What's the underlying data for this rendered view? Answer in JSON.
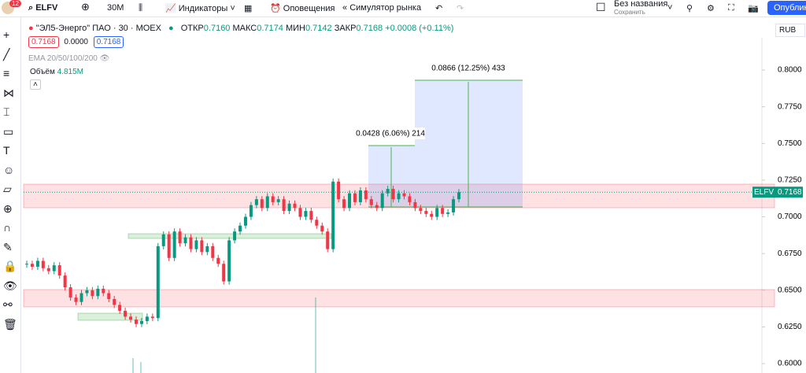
{
  "toolbar": {
    "badge": "12",
    "symbol": "ELFV",
    "interval": "30M",
    "indicators": "Индикаторы",
    "alerts": "Оповещения",
    "replay": "Симулятор рынка",
    "layout_name": "Без названия",
    "layout_status": "Сохранить",
    "publish": "Опубликовать"
  },
  "legend": {
    "title": "\"ЭЛ5-Энерго\" ПАО · 30 · MOEX",
    "open_label": "ОТКР",
    "open": "0.7160",
    "high_label": "МАКС",
    "high": "0.7174",
    "low_label": "МИН",
    "low": "0.7142",
    "close_label": "ЗАКР",
    "close": "0.7168",
    "change": "+0.0008 (+0.11%)",
    "bid": "0.7168",
    "spread": "0.0000",
    "ask": "0.7168",
    "ema": "EMA 20/50/100/200",
    "volume_label": "Объём",
    "volume": "4.815M"
  },
  "currency": "RUB",
  "price_label": {
    "symbol": "ELFV",
    "value": "0.7168"
  },
  "measures": [
    "0.0428 (6.06%) 214",
    "0.0866 (12.25%) 433"
  ],
  "chart_data": {
    "type": "candlestick",
    "candles": [
      0.668,
      0.666,
      0.67,
      0.665,
      0.663,
      0.667,
      0.66,
      0.652,
      0.645,
      0.642,
      0.648,
      0.65,
      0.646,
      0.651,
      0.648,
      0.644,
      0.64,
      0.636,
      0.632,
      0.63,
      0.627,
      0.629,
      0.632,
      0.631,
      0.68,
      0.688,
      0.672,
      0.69,
      0.682,
      0.686,
      0.678,
      0.684,
      0.676,
      0.68,
      0.672,
      0.668,
      0.656,
      0.684,
      0.69,
      0.694,
      0.7,
      0.708,
      0.712,
      0.706,
      0.714,
      0.71,
      0.712,
      0.704,
      0.709,
      0.706,
      0.7,
      0.704,
      0.698,
      0.694,
      0.69,
      0.678,
      0.724,
      0.712,
      0.706,
      0.716,
      0.71,
      0.718,
      0.712,
      0.708,
      0.706,
      0.716,
      0.719,
      0.712,
      0.716,
      0.714,
      0.71,
      0.706,
      0.704,
      0.702,
      0.7,
      0.706,
      0.702,
      0.703,
      0.712,
      0.7168
    ],
    "ylim": [
      0.5936,
      0.822
    ],
    "yticks": [
      {
        "value": 0.8,
        "label": "0.8000"
      },
      {
        "value": 0.775,
        "label": "0.7750"
      },
      {
        "value": 0.75,
        "label": "0.7500"
      },
      {
        "value": 0.725,
        "label": "0.7250"
      },
      {
        "value": 0.7,
        "label": "0.7000"
      },
      {
        "value": 0.675,
        "label": "0.6750"
      },
      {
        "value": 0.65,
        "label": "0.6500"
      },
      {
        "value": 0.625,
        "label": "0.6250"
      },
      {
        "value": 0.6,
        "label": "0.6000"
      }
    ],
    "up_color": "#089981",
    "down_color": "#f23645"
  }
}
